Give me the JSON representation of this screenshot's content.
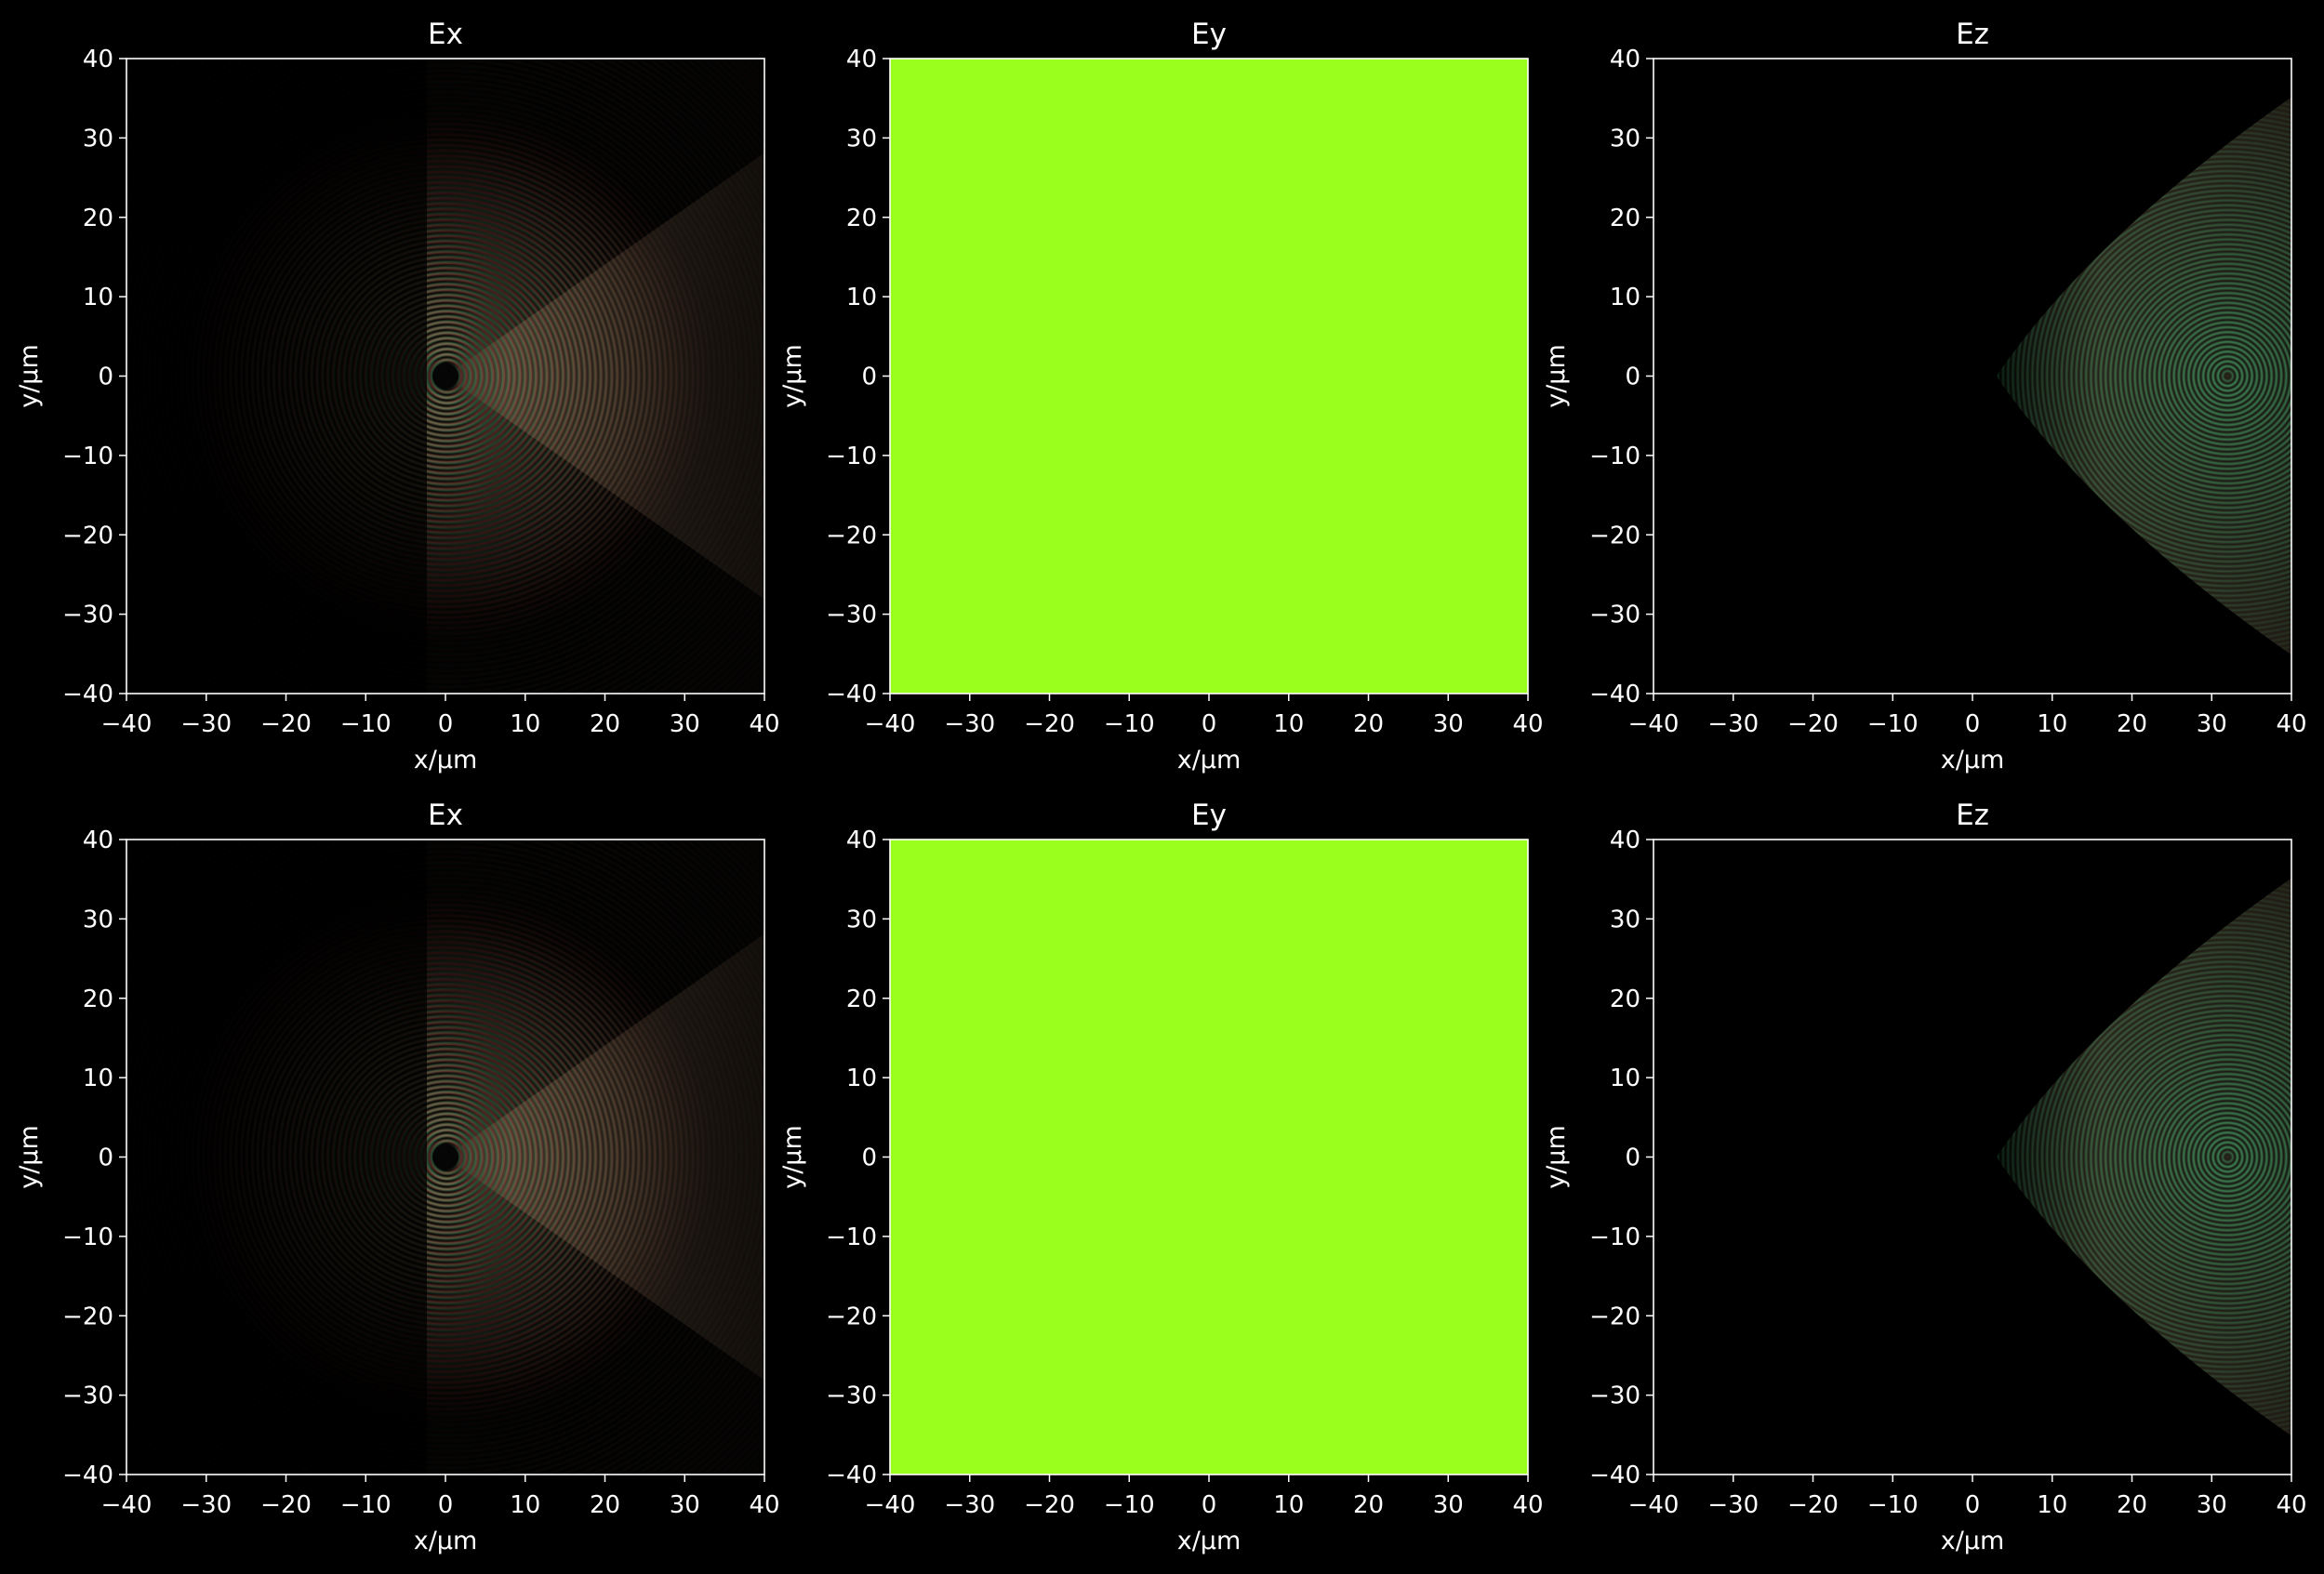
{
  "chart_data": [
    {
      "type": "heatmap",
      "title": "Ex",
      "field": "Ex",
      "xlabel": "x/μm",
      "ylabel": "y/μm",
      "xlim": [
        -40,
        40
      ],
      "ylim": [
        -40,
        40
      ],
      "xticks": [
        -40,
        -30,
        -20,
        -10,
        0,
        10,
        20,
        30,
        40
      ],
      "yticks": [
        -40,
        -30,
        -20,
        -10,
        0,
        10,
        20,
        30,
        40
      ],
      "tick_labels": [
        "−40",
        "−30",
        "−20",
        "−10",
        "0",
        "10",
        "20",
        "30",
        "40"
      ],
      "background": "#000000",
      "grid": false
    },
    {
      "type": "heatmap",
      "title": "Ey",
      "field": "Ey",
      "xlabel": "x/μm",
      "ylabel": "y/μm",
      "xlim": [
        -40,
        40
      ],
      "ylim": [
        -40,
        40
      ],
      "xticks": [
        -40,
        -30,
        -20,
        -10,
        0,
        10,
        20,
        30,
        40
      ],
      "yticks": [
        -40,
        -30,
        -20,
        -10,
        0,
        10,
        20,
        30,
        40
      ],
      "tick_labels": [
        "−40",
        "−30",
        "−20",
        "−10",
        "0",
        "10",
        "20",
        "30",
        "40"
      ],
      "fill_color": "#9bff1d",
      "grid": false
    },
    {
      "type": "heatmap",
      "title": "Ez",
      "field": "Ez",
      "xlabel": "x/μm",
      "ylabel": "y/μm",
      "xlim": [
        -40,
        40
      ],
      "ylim": [
        -40,
        40
      ],
      "xticks": [
        -40,
        -30,
        -20,
        -10,
        0,
        10,
        20,
        30,
        40
      ],
      "yticks": [
        -40,
        -30,
        -20,
        -10,
        0,
        10,
        20,
        30,
        40
      ],
      "tick_labels": [
        "−40",
        "−30",
        "−20",
        "−10",
        "0",
        "10",
        "20",
        "30",
        "40"
      ],
      "background": "#000000",
      "grid": false
    },
    {
      "type": "heatmap",
      "title": "Ex",
      "field": "Ex",
      "xlabel": "x/μm",
      "ylabel": "y/μm",
      "xlim": [
        -40,
        40
      ],
      "ylim": [
        -40,
        40
      ],
      "xticks": [
        -40,
        -30,
        -20,
        -10,
        0,
        10,
        20,
        30,
        40
      ],
      "yticks": [
        -40,
        -30,
        -20,
        -10,
        0,
        10,
        20,
        30,
        40
      ],
      "tick_labels": [
        "−40",
        "−30",
        "−20",
        "−10",
        "0",
        "10",
        "20",
        "30",
        "40"
      ],
      "background": "#000000",
      "grid": false
    },
    {
      "type": "heatmap",
      "title": "Ey",
      "field": "Ey",
      "xlabel": "x/μm",
      "ylabel": "y/μm",
      "xlim": [
        -40,
        40
      ],
      "ylim": [
        -40,
        40
      ],
      "xticks": [
        -40,
        -30,
        -20,
        -10,
        0,
        10,
        20,
        30,
        40
      ],
      "yticks": [
        -40,
        -30,
        -20,
        -10,
        0,
        10,
        20,
        30,
        40
      ],
      "tick_labels": [
        "−40",
        "−30",
        "−20",
        "−10",
        "0",
        "10",
        "20",
        "30",
        "40"
      ],
      "fill_color": "#9bff1d",
      "grid": false
    },
    {
      "type": "heatmap",
      "title": "Ez",
      "field": "Ez",
      "xlabel": "x/μm",
      "ylabel": "y/μm",
      "xlim": [
        -40,
        40
      ],
      "ylim": [
        -40,
        40
      ],
      "xticks": [
        -40,
        -30,
        -20,
        -10,
        0,
        10,
        20,
        30,
        40
      ],
      "yticks": [
        -40,
        -30,
        -20,
        -10,
        0,
        10,
        20,
        30,
        40
      ],
      "tick_labels": [
        "−40",
        "−30",
        "−20",
        "−10",
        "0",
        "10",
        "20",
        "30",
        "40"
      ],
      "background": "#000000",
      "grid": false
    }
  ],
  "colors": {
    "background": "#000000",
    "axes": "#ffffff",
    "ey_fill": "#9bff1d",
    "fringe_red": "#ff5a5a",
    "fringe_green": "#5affa0",
    "fringe_warm": "#c8a07a"
  }
}
